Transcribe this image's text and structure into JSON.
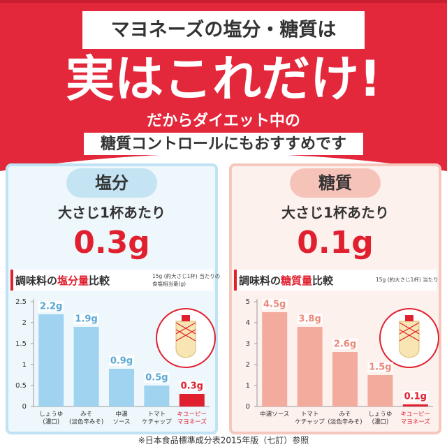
{
  "header": {
    "banner": "マヨネーズの塩分・糖質は",
    "headline": "実はこれだけ!",
    "sub1": "だからダイエット中の",
    "sub2": "糖質コントロールにもおすすめです"
  },
  "chart_data": [
    {
      "type": "bar",
      "tab": "塩分",
      "per": "大さじ1杯あたり",
      "amount": "0.3g",
      "title_parts": [
        "調味料の",
        "塩分量",
        "比較"
      ],
      "note": [
        "15g (約大さじ1杯) 当たりの",
        "食塩相当量(g)"
      ],
      "categories": [
        [
          "しょうゆ",
          "(濃口)"
        ],
        [
          "みそ",
          "(淡色辛みそ)"
        ],
        [
          "中濃",
          "ソース"
        ],
        [
          "トマト",
          "ケチャップ"
        ],
        [
          "キユーピー",
          "マヨネーズ"
        ]
      ],
      "values": [
        2.2,
        1.9,
        0.9,
        0.5,
        0.3
      ],
      "value_labels": [
        "2.2g",
        "1.9g",
        "0.9g",
        "0.5g",
        "0.3g"
      ],
      "colors": [
        "#9fd3f0",
        "#9fd3f0",
        "#9fd3f0",
        "#9fd3f0",
        "#e0202e"
      ],
      "label_color": "#5aa7d3",
      "panel_color": "#eef7fc",
      "border_color": "#bfe2f4",
      "tab_color": "#c4e3f3",
      "ylim": [
        0,
        2.5
      ],
      "yticks": [
        0,
        0.5,
        1,
        1.5,
        2,
        2.5
      ]
    },
    {
      "type": "bar",
      "tab": "糖質",
      "per": "大さじ1杯あたり",
      "amount": "0.1g",
      "title_parts": [
        "調味料の",
        "糖質量",
        "比較"
      ],
      "note": [
        "15g (約大さじ1杯) 当たり"
      ],
      "categories": [
        [
          "中濃ソース"
        ],
        [
          "トマト",
          "ケチャップ"
        ],
        [
          "みそ",
          "(淡色辛みそ)"
        ],
        [
          "しょうゆ",
          "(濃口)"
        ],
        [
          "キユーピー",
          "マヨネーズ"
        ]
      ],
      "values": [
        4.5,
        3.8,
        2.6,
        1.5,
        0.1
      ],
      "value_labels": [
        "4.5g",
        "3.8g",
        "2.6g",
        "1.5g",
        "0.1g"
      ],
      "colors": [
        "#f3ab9e",
        "#f3ab9e",
        "#f3ab9e",
        "#f3ab9e",
        "#e0202e"
      ],
      "label_color": "#e9897a",
      "panel_color": "#fdf1ee",
      "border_color": "#f6c7bd",
      "tab_color": "#f6c3b8",
      "ylim": [
        0,
        5
      ],
      "yticks": [
        0,
        1,
        2,
        3,
        4,
        5
      ]
    }
  ],
  "footnote": "※日本食品標準成分表2015年版（七訂）参照"
}
